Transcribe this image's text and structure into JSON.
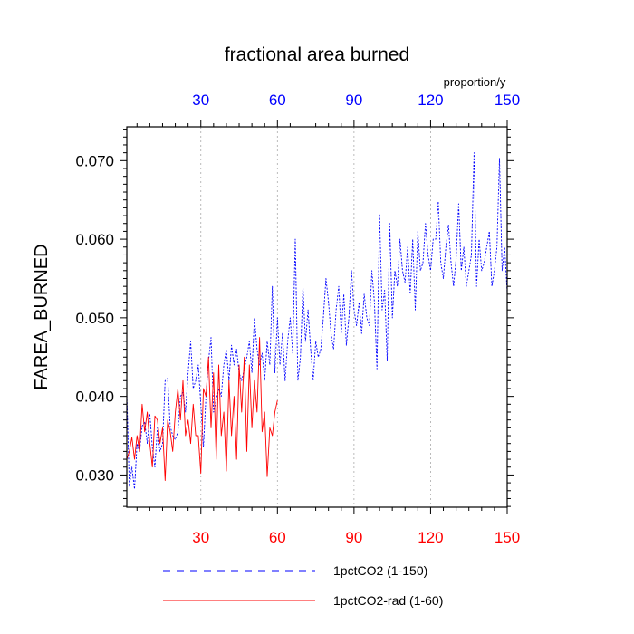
{
  "chart_data": {
    "type": "line",
    "title": "fractional area burned",
    "ylabel": "FAREA_BURNED",
    "units_label": "proportion/y",
    "xlim": [
      1,
      150
    ],
    "ylim": [
      0.0259,
      0.0743
    ],
    "x_ticks": [
      "30",
      "60",
      "90",
      "120",
      "150"
    ],
    "x_tick_values": [
      30,
      60,
      90,
      120,
      150
    ],
    "y_ticks": [
      "0.030",
      "0.040",
      "0.050",
      "0.060",
      "0.070"
    ],
    "y_tick_values": [
      0.03,
      0.04,
      0.05,
      0.06,
      0.07
    ],
    "grid": "vertical dotted at x ticks",
    "legend_position": "bottom",
    "colors": {
      "top_axis_labels": "#0000ff",
      "bottom_axis_labels": "#ff0000"
    },
    "series": [
      {
        "name": "1pctCO2 (1-150)",
        "color": "#0000ff",
        "dash": "dashed",
        "x_start": 1,
        "values": [
          0.0405,
          0.0285,
          0.031,
          0.0282,
          0.034,
          0.033,
          0.0362,
          0.0368,
          0.034,
          0.0378,
          0.0335,
          0.031,
          0.036,
          0.033,
          0.034,
          0.042,
          0.0423,
          0.0362,
          0.035,
          0.0345,
          0.0355,
          0.04,
          0.0405,
          0.038,
          0.043,
          0.047,
          0.041,
          0.042,
          0.044,
          0.039,
          0.0335,
          0.04,
          0.0445,
          0.0475,
          0.038,
          0.0395,
          0.041,
          0.04,
          0.044,
          0.046,
          0.042,
          0.0465,
          0.044,
          0.046,
          0.043,
          0.042,
          0.0435,
          0.045,
          0.047,
          0.043,
          0.05,
          0.046,
          0.044,
          0.0455,
          0.042,
          0.047,
          0.044,
          0.054,
          0.043,
          0.05,
          0.044,
          0.048,
          0.042,
          0.047,
          0.05,
          0.0455,
          0.06,
          0.042,
          0.045,
          0.054,
          0.047,
          0.051,
          0.046,
          0.042,
          0.047,
          0.045,
          0.046,
          0.05,
          0.055,
          0.052,
          0.048,
          0.046,
          0.051,
          0.054,
          0.048,
          0.053,
          0.0465,
          0.05,
          0.056,
          0.051,
          0.049,
          0.052,
          0.048,
          0.053,
          0.05,
          0.049,
          0.056,
          0.052,
          0.0435,
          0.0632,
          0.051,
          0.0535,
          0.0445,
          0.062,
          0.05,
          0.056,
          0.054,
          0.06,
          0.056,
          0.0545,
          0.059,
          0.053,
          0.06,
          0.051,
          0.061,
          0.056,
          0.057,
          0.062,
          0.058,
          0.056,
          0.06,
          0.06,
          0.0648,
          0.057,
          0.055,
          0.059,
          0.0618,
          0.057,
          0.054,
          0.0575,
          0.0645,
          0.056,
          0.059,
          0.054,
          0.056,
          0.058,
          0.071,
          0.054,
          0.06,
          0.056,
          0.057,
          0.059,
          0.061,
          0.054,
          0.056,
          0.059,
          0.0703,
          0.056,
          0.059,
          0.0532
        ]
      },
      {
        "name": "1pctCO2-rad (1-60)",
        "color": "#ff0000",
        "dash": "solid",
        "x_start": 1,
        "values": [
          0.032,
          0.033,
          0.0348,
          0.032,
          0.035,
          0.033,
          0.039,
          0.0355,
          0.038,
          0.034,
          0.031,
          0.0375,
          0.037,
          0.034,
          0.036,
          0.0293,
          0.037,
          0.0355,
          0.033,
          0.038,
          0.041,
          0.037,
          0.042,
          0.035,
          0.037,
          0.034,
          0.039,
          0.035,
          0.035,
          0.0302,
          0.041,
          0.04,
          0.045,
          0.036,
          0.043,
          0.032,
          0.044,
          0.035,
          0.038,
          0.0305,
          0.042,
          0.035,
          0.04,
          0.032,
          0.044,
          0.038,
          0.045,
          0.033,
          0.044,
          0.036,
          0.042,
          0.038,
          0.0475,
          0.0355,
          0.038,
          0.0298,
          0.036,
          0.035,
          0.038,
          0.0395
        ]
      }
    ]
  }
}
